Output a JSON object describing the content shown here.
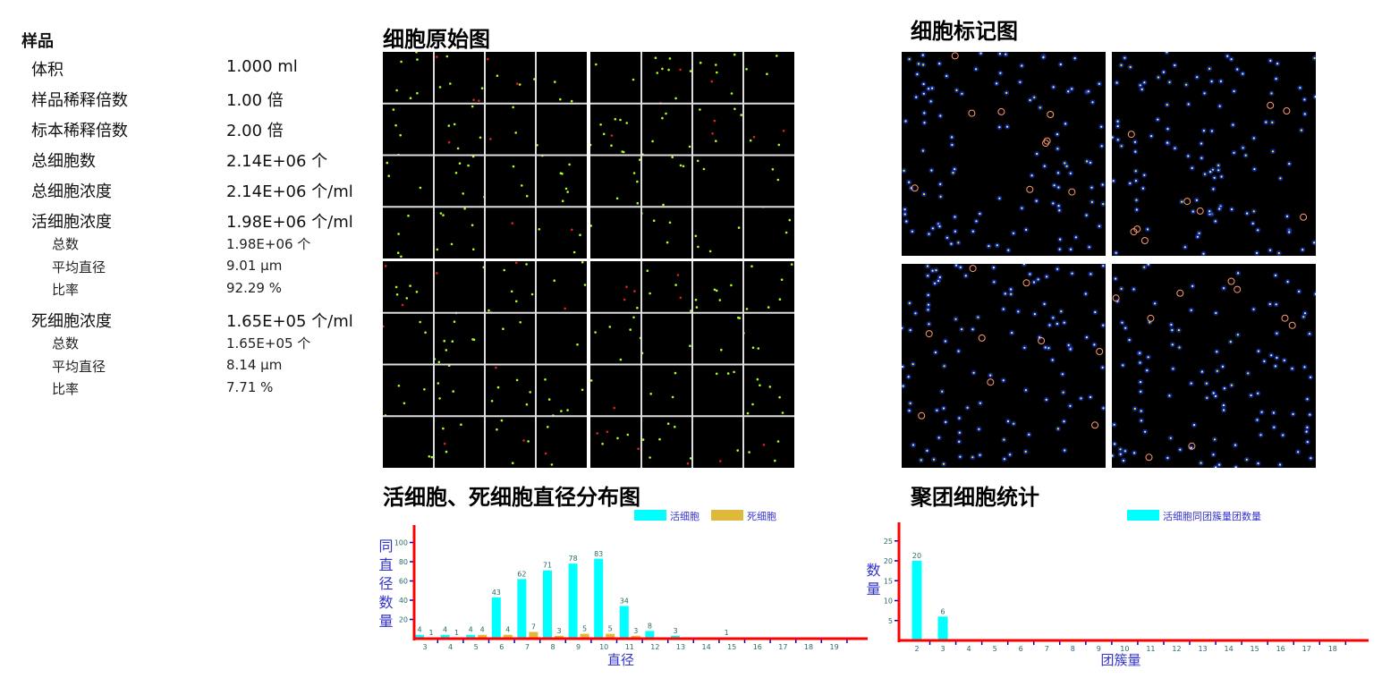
{
  "sample": {
    "header": "样品",
    "rows": [
      {
        "label": "体积",
        "value": "1.000 ml"
      },
      {
        "label": "样品稀释倍数",
        "value": "1.00 倍"
      },
      {
        "label": "标本稀释倍数",
        "value": "2.00 倍"
      },
      {
        "label": "总细胞数",
        "value": "2.14E+06 个"
      },
      {
        "label": "总细胞浓度",
        "value": "2.14E+06 个/ml"
      },
      {
        "label": "活细胞浓度",
        "value": "1.98E+06 个/ml"
      }
    ],
    "live_sub": [
      {
        "label": "总数",
        "value": "1.98E+06 个"
      },
      {
        "label": "平均直径",
        "value": "9.01 μm"
      },
      {
        "label": "比率",
        "value": "92.29 %"
      }
    ],
    "dead": {
      "label": "死细胞浓度",
      "value": "1.65E+05 个/ml"
    },
    "dead_sub": [
      {
        "label": "总数",
        "value": "1.65E+05 个"
      },
      {
        "label": "平均直径",
        "value": "8.14 μm"
      },
      {
        "label": "比率",
        "value": "7.71 %"
      }
    ]
  },
  "titles": {
    "raw": "细胞原始图",
    "marked": "细胞标记图",
    "dist": "活细胞、死细胞直径分布图",
    "cluster": "聚团细胞统计"
  },
  "colors": {
    "live": "#00ffff",
    "dead": "#e0b93a",
    "axis": "#ff0000",
    "label": "#3333cc"
  },
  "chart_data": [
    {
      "type": "bar",
      "title": "活细胞、死细胞直径分布图",
      "xlabel": "直径",
      "ylabel": "同直径数量",
      "categories": [
        "3",
        "4",
        "5",
        "6",
        "7",
        "8",
        "9",
        "10",
        "11",
        "12",
        "13",
        "14",
        "15",
        "16",
        "17",
        "18",
        "19"
      ],
      "yticks": [
        20,
        40,
        60,
        80,
        100
      ],
      "ylim": [
        0,
        110
      ],
      "legend": "top-right",
      "series": [
        {
          "name": "活细胞",
          "values": [
            4,
            4,
            4,
            43,
            62,
            71,
            78,
            83,
            34,
            8,
            3,
            0,
            1,
            0,
            0,
            0,
            0
          ]
        },
        {
          "name": "死细胞",
          "values": [
            1,
            1,
            4,
            4,
            7,
            3,
            5,
            5,
            3,
            0,
            0,
            0,
            0,
            0,
            0,
            0,
            0
          ]
        }
      ]
    },
    {
      "type": "bar",
      "title": "聚团细胞统计",
      "xlabel": "团簇量",
      "ylabel": "数量",
      "categories": [
        "2",
        "3",
        "4",
        "5",
        "6",
        "7",
        "8",
        "9",
        "10",
        "11",
        "12",
        "13",
        "14",
        "15",
        "16",
        "17",
        "18"
      ],
      "yticks": [
        5,
        10,
        15,
        20,
        25
      ],
      "ylim": [
        0,
        29
      ],
      "legend": "top-right",
      "series": [
        {
          "name": "活细胞同团簇量团数量",
          "values": [
            20,
            6,
            0,
            0,
            0,
            0,
            0,
            0,
            0,
            0,
            0,
            0,
            0,
            0,
            0,
            0,
            0
          ]
        }
      ]
    }
  ]
}
